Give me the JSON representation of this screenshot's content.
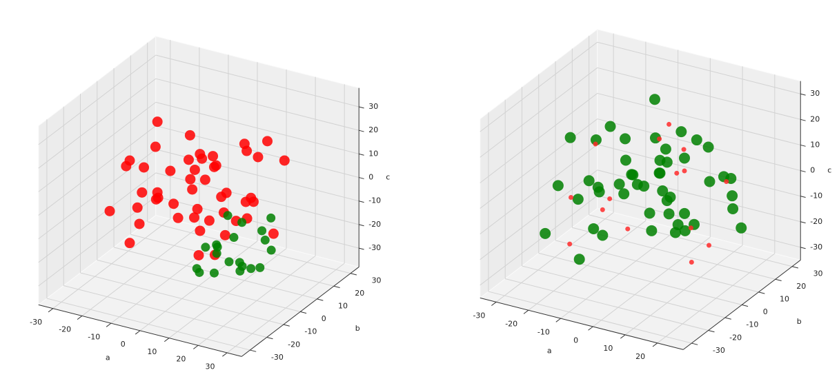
{
  "chart_data": [
    {
      "type": "scatter3d",
      "xlabel": "a",
      "ylabel": "b",
      "zlabel": "c",
      "xlim": [
        -35,
        35
      ],
      "ylim": [
        -35,
        35
      ],
      "zlim": [
        -38,
        38
      ],
      "xticks": [
        -30,
        -20,
        -10,
        0,
        10,
        20,
        30
      ],
      "yticks": [
        -30,
        -20,
        -10,
        0,
        10,
        20,
        30
      ],
      "zticks": [
        -30,
        -20,
        -10,
        0,
        10,
        20,
        30
      ],
      "grid": true,
      "series": [
        {
          "color": "#ff0000",
          "x": [
            -25,
            -20,
            -18,
            -15,
            -12,
            -10,
            -8,
            -5,
            -3,
            0,
            2,
            5,
            8,
            10,
            12,
            15,
            18,
            20,
            -22,
            -16,
            -10,
            -4,
            0,
            6,
            12,
            18,
            -20,
            -14,
            -6,
            2,
            8,
            14,
            -24,
            -12,
            0,
            10,
            -8,
            4,
            16,
            -18,
            -2,
            6,
            22,
            -14,
            -6,
            10,
            20,
            0
          ],
          "y": [
            0,
            10,
            -10,
            20,
            -5,
            5,
            -20,
            15,
            0,
            -15,
            10,
            20,
            -10,
            5,
            -20,
            15,
            0,
            10,
            -15,
            -5,
            15,
            -10,
            0,
            25,
            -5,
            20,
            10,
            0,
            -25,
            5,
            15,
            -15,
            5,
            20,
            -5,
            -20,
            10,
            -5,
            5,
            -10,
            20,
            0,
            -10,
            25,
            -15,
            10,
            -25,
            15
          ],
          "z": [
            5,
            -10,
            15,
            0,
            20,
            -15,
            10,
            -20,
            25,
            5,
            -5,
            10,
            15,
            -10,
            0,
            20,
            5,
            -15,
            -5,
            10,
            0,
            15,
            -25,
            5,
            -10,
            10,
            20,
            -5,
            0,
            15,
            -15,
            25,
            -15,
            -20,
            10,
            5,
            -5,
            20,
            0,
            -20,
            -10,
            15,
            10,
            0,
            5,
            20,
            -5,
            -15
          ]
        },
        {
          "color": "#008000",
          "x": [
            8,
            12,
            15,
            18,
            20,
            22,
            10,
            14,
            16,
            24,
            6,
            12,
            18,
            20,
            9,
            15,
            22,
            11,
            17,
            25
          ],
          "y": [
            -15,
            -10,
            -5,
            0,
            5,
            -20,
            0,
            -15,
            10,
            -5,
            -10,
            5,
            -20,
            -10,
            -5,
            0,
            5,
            -15,
            -5,
            0
          ],
          "z": [
            -20,
            -15,
            -10,
            -25,
            -15,
            -10,
            -5,
            -20,
            -15,
            -20,
            -25,
            -10,
            -5,
            -20,
            -15,
            -25,
            -5,
            -10,
            -20,
            -15
          ]
        }
      ]
    },
    {
      "type": "scatter3d",
      "xlabel": "a",
      "ylabel": "b",
      "zlabel": "c",
      "xlim": [
        -35,
        28
      ],
      "ylim": [
        -35,
        35
      ],
      "zlim": [
        -35,
        35
      ],
      "xticks": [
        -30,
        -20,
        -10,
        0,
        10,
        20
      ],
      "yticks": [
        -30,
        -20,
        -10,
        0,
        10,
        20,
        30
      ],
      "zticks": [
        -30,
        -20,
        -10,
        0,
        10,
        20,
        30
      ],
      "grid": true,
      "series": [
        {
          "color": "#008000",
          "x": [
            -25,
            -20,
            -18,
            -15,
            -12,
            -10,
            -8,
            -5,
            -3,
            0,
            2,
            5,
            8,
            10,
            12,
            15,
            18,
            20,
            -22,
            -16,
            -10,
            -4,
            0,
            6,
            12,
            18,
            -20,
            -14,
            -6,
            2,
            8,
            14,
            -24,
            -12,
            0,
            10,
            -8,
            4,
            16,
            -18,
            -2,
            6,
            22,
            -14,
            -6,
            10,
            20,
            0
          ],
          "y": [
            15,
            -25,
            10,
            -15,
            25,
            -10,
            0,
            20,
            -10,
            5,
            -5,
            10,
            -20,
            -5,
            20,
            5,
            -15,
            15,
            5,
            -25,
            0,
            10,
            20,
            -5,
            25,
            0,
            -10,
            15,
            -5,
            -15,
            10,
            0,
            15,
            -20,
            5,
            -10,
            20,
            10,
            -15,
            0,
            15,
            -20,
            5,
            -5,
            20,
            -10,
            10,
            0
          ],
          "z": [
            5,
            -10,
            15,
            0,
            20,
            -15,
            10,
            -20,
            25,
            5,
            -5,
            10,
            15,
            -10,
            0,
            20,
            5,
            -15,
            -5,
            10,
            0,
            15,
            -25,
            5,
            -10,
            10,
            20,
            -5,
            0,
            15,
            -15,
            25,
            -15,
            -20,
            10,
            5,
            -5,
            20,
            0,
            -20,
            -10,
            15,
            10,
            0,
            5,
            20,
            -5,
            -15
          ]
        },
        {
          "color": "#ff2a2a",
          "x": [
            -20,
            -10,
            0,
            10,
            -15,
            5,
            15,
            -5,
            20,
            -25,
            0,
            10,
            -10,
            5,
            18
          ],
          "y": [
            5,
            -10,
            15,
            0,
            -20,
            10,
            -5,
            20,
            -15,
            0,
            -25,
            15,
            5,
            -5,
            10
          ],
          "z": [
            10,
            -5,
            0,
            20,
            -15,
            5,
            -20,
            15,
            0,
            -10,
            10,
            -25,
            -20,
            25,
            5
          ]
        }
      ]
    }
  ]
}
